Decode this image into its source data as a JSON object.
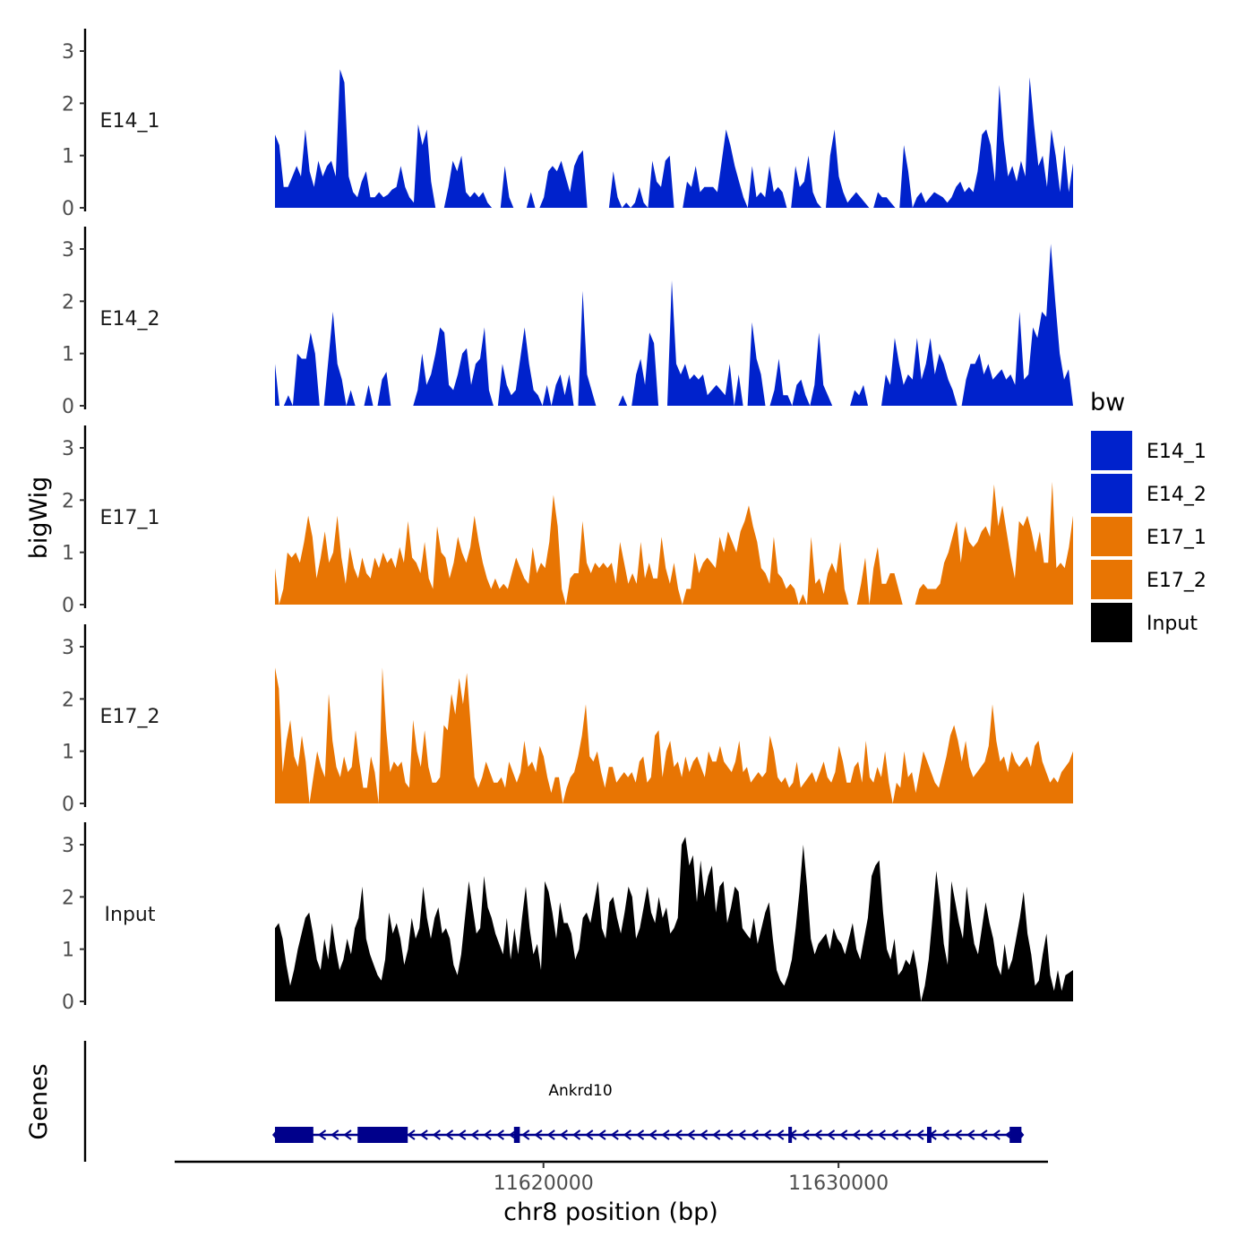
{
  "chart_data": {
    "type": "area",
    "ylabel": "bigWig",
    "xlabel": "chr8 position (bp)",
    "lower_panel_label": "Genes",
    "ylim": [
      0,
      3.3
    ],
    "y_ticks": [
      0,
      1,
      2,
      3
    ],
    "xlim": [
      11607500,
      11637100
    ],
    "x_ticks": [
      11620000,
      11630000
    ],
    "x_tick_labels": [
      "11620000",
      "11630000"
    ],
    "track_x_range": [
      11610900,
      11637950
    ],
    "legend": {
      "title": "bw",
      "entries": [
        {
          "label": "E14_1",
          "color": "#0022CC"
        },
        {
          "label": "E14_2",
          "color": "#0022CC"
        },
        {
          "label": "E17_1",
          "color": "#E87503"
        },
        {
          "label": "E17_2",
          "color": "#E87503"
        },
        {
          "label": "Input",
          "color": "#000000"
        }
      ]
    },
    "series": [
      {
        "name": "E14_1",
        "color": "#0022CC",
        "values": [
          1.4,
          1.2,
          0.4,
          0.4,
          0.6,
          0.8,
          0.6,
          1.5,
          0.7,
          0.4,
          0.9,
          0.6,
          0.8,
          0.9,
          0.6,
          2.65,
          2.4,
          0.6,
          0.3,
          0.2,
          0.5,
          0.7,
          0.2,
          0.2,
          0.3,
          0.2,
          0.25,
          0.35,
          0.4,
          0.8,
          0.4,
          0.2,
          0.1,
          1.6,
          1.2,
          1.5,
          0.5,
          0.0,
          0.0,
          0.0,
          0.4,
          0.9,
          0.7,
          1.0,
          0.3,
          0.2,
          0.3,
          0.2,
          0.3,
          0.1,
          0.0,
          0.0,
          0.0,
          0.8,
          0.2,
          0.0,
          0.0,
          0.0,
          0.0,
          0.3,
          0.0,
          0.0,
          0.2,
          0.7,
          0.8,
          0.7,
          0.9,
          0.6,
          0.3,
          0.8,
          1.0,
          1.1,
          0.0,
          0.0,
          0.0,
          0.0,
          0.0,
          0.0,
          0.7,
          0.2,
          0.0,
          0.1,
          0.0,
          0.1,
          0.4,
          0.1,
          0.0,
          0.9,
          0.5,
          0.4,
          0.9,
          1.0,
          0.0,
          0.0,
          0.0,
          0.5,
          0.4,
          0.8,
          0.3,
          0.4,
          0.4,
          0.4,
          0.3,
          0.9,
          1.5,
          1.2,
          0.8,
          0.5,
          0.2,
          0.0,
          0.8,
          0.2,
          0.3,
          0.2,
          0.8,
          0.3,
          0.4,
          0.3,
          0.0,
          0.0,
          0.8,
          0.4,
          0.5,
          1.0,
          0.3,
          0.1,
          0.0,
          0.0,
          1.0,
          1.5,
          0.6,
          0.3,
          0.1,
          0.2,
          0.3,
          0.2,
          0.1,
          0.0,
          0.0,
          0.3,
          0.2,
          0.2,
          0.1,
          0.0,
          0.0,
          1.2,
          0.7,
          0.0,
          0.2,
          0.3,
          0.1,
          0.2,
          0.3,
          0.25,
          0.2,
          0.1,
          0.2,
          0.4,
          0.5,
          0.3,
          0.4,
          0.3,
          0.7,
          1.4,
          1.5,
          1.2,
          0.5,
          2.35,
          1.3,
          0.6,
          0.8,
          0.5,
          0.9,
          0.6,
          2.5,
          1.6,
          0.8,
          1.0,
          0.4,
          1.5,
          1.0,
          0.3,
          1.2,
          0.3,
          0.85
        ]
      },
      {
        "name": "E14_2",
        "color": "#0022CC",
        "values": [
          0.8,
          0.0,
          0.0,
          0.2,
          0.0,
          1.0,
          0.9,
          0.9,
          1.4,
          1.0,
          0.0,
          0.0,
          0.9,
          1.8,
          0.8,
          0.5,
          0.0,
          0.3,
          0.0,
          0.0,
          0.0,
          0.4,
          0.0,
          0.0,
          0.5,
          0.65,
          0.0,
          0.0,
          0.0,
          0.0,
          0.0,
          0.0,
          0.3,
          1.0,
          0.4,
          0.6,
          1.0,
          1.5,
          1.4,
          0.4,
          0.3,
          0.6,
          1.0,
          1.1,
          0.4,
          0.8,
          0.9,
          1.5,
          0.3,
          0.0,
          0.0,
          0.8,
          0.4,
          0.2,
          0.3,
          0.9,
          1.5,
          0.8,
          0.3,
          0.2,
          0.0,
          0.4,
          0.0,
          0.4,
          0.6,
          0.2,
          0.6,
          0.0,
          0.0,
          2.2,
          0.6,
          0.3,
          0.0,
          0.0,
          0.0,
          0.0,
          0.0,
          0.0,
          0.2,
          0.0,
          0.0,
          0.6,
          0.9,
          0.4,
          1.4,
          1.2,
          0.0,
          0.0,
          0.0,
          2.4,
          0.8,
          0.6,
          0.8,
          0.5,
          0.6,
          0.5,
          0.6,
          0.2,
          0.3,
          0.4,
          0.3,
          0.2,
          0.8,
          0.0,
          0.6,
          0.0,
          0.0,
          1.6,
          0.9,
          0.6,
          0.0,
          0.0,
          0.3,
          0.9,
          0.2,
          0.2,
          0.0,
          0.4,
          0.5,
          0.2,
          0.0,
          0.4,
          1.4,
          0.4,
          0.2,
          0.0,
          0.0,
          0.0,
          0.0,
          0.0,
          0.3,
          0.2,
          0.4,
          0.0,
          0.0,
          0.0,
          0.0,
          0.6,
          0.4,
          1.3,
          0.8,
          0.4,
          0.6,
          0.5,
          1.3,
          0.5,
          0.8,
          1.3,
          0.6,
          1.0,
          0.8,
          0.5,
          0.3,
          0.0,
          0.0,
          0.5,
          0.8,
          0.8,
          1.0,
          0.6,
          0.8,
          0.5,
          0.6,
          0.7,
          0.5,
          0.6,
          0.4,
          1.8,
          0.5,
          0.6,
          1.5,
          1.3,
          1.8,
          1.7,
          3.1,
          2.0,
          1.0,
          0.5,
          0.7,
          0.0
        ]
      },
      {
        "name": "E17_1",
        "color": "#E87503",
        "values": [
          0.7,
          0.0,
          0.3,
          1.0,
          0.9,
          1.0,
          0.8,
          1.2,
          1.7,
          1.3,
          0.5,
          0.9,
          1.4,
          0.8,
          1.0,
          1.7,
          0.9,
          0.4,
          1.1,
          0.7,
          0.5,
          0.9,
          0.6,
          0.5,
          0.9,
          0.7,
          1.0,
          0.8,
          0.9,
          0.7,
          1.1,
          0.8,
          1.6,
          0.9,
          0.8,
          0.6,
          1.2,
          0.5,
          0.3,
          1.5,
          1.0,
          0.9,
          0.5,
          0.8,
          1.3,
          1.0,
          0.8,
          1.1,
          1.7,
          1.2,
          0.8,
          0.5,
          0.3,
          0.5,
          0.3,
          0.4,
          0.3,
          0.6,
          0.9,
          0.7,
          0.5,
          0.4,
          1.1,
          0.6,
          0.8,
          0.7,
          1.2,
          2.1,
          1.5,
          0.3,
          0.0,
          0.5,
          0.6,
          0.6,
          1.6,
          0.8,
          0.6,
          0.8,
          0.7,
          0.8,
          0.7,
          0.8,
          0.4,
          1.2,
          0.8,
          0.4,
          0.6,
          0.4,
          1.2,
          0.5,
          0.8,
          0.5,
          0.5,
          1.3,
          0.7,
          0.4,
          0.8,
          0.3,
          0.0,
          0.3,
          0.3,
          1.0,
          0.6,
          0.8,
          0.9,
          0.8,
          0.7,
          1.3,
          1.0,
          1.4,
          1.2,
          1.0,
          1.4,
          1.6,
          1.9,
          1.5,
          1.2,
          0.7,
          0.6,
          0.4,
          1.3,
          0.6,
          0.5,
          0.3,
          0.4,
          0.3,
          0.0,
          0.2,
          0.0,
          1.3,
          0.4,
          0.5,
          0.2,
          0.6,
          0.8,
          0.6,
          1.2,
          0.3,
          0.0,
          0.0,
          0.0,
          0.4,
          0.9,
          0.0,
          0.7,
          1.1,
          0.4,
          0.4,
          0.6,
          0.6,
          0.3,
          0.0,
          0.0,
          0.0,
          0.0,
          0.3,
          0.4,
          0.3,
          0.3,
          0.3,
          0.4,
          0.8,
          1.0,
          1.3,
          1.6,
          0.8,
          1.5,
          1.2,
          1.1,
          1.2,
          1.4,
          1.5,
          1.3,
          2.3,
          1.5,
          1.9,
          1.4,
          0.9,
          0.5,
          1.6,
          1.5,
          1.7,
          1.4,
          1.0,
          1.4,
          0.8,
          0.8,
          2.35,
          0.7,
          0.8,
          0.7,
          1.1,
          1.7
        ]
      },
      {
        "name": "E17_2",
        "color": "#E87503",
        "values": [
          2.6,
          2.2,
          0.6,
          1.2,
          1.6,
          0.9,
          0.7,
          1.3,
          0.8,
          0.0,
          0.5,
          1.0,
          0.7,
          0.5,
          2.1,
          1.2,
          0.7,
          0.5,
          0.9,
          0.6,
          0.7,
          1.4,
          0.8,
          0.3,
          0.3,
          0.9,
          0.6,
          0.0,
          2.6,
          1.4,
          0.6,
          0.8,
          0.7,
          0.8,
          0.4,
          0.3,
          1.6,
          1.0,
          0.7,
          1.4,
          0.7,
          0.4,
          0.4,
          0.5,
          1.5,
          1.4,
          2.1,
          1.7,
          2.4,
          1.9,
          2.5,
          1.5,
          0.5,
          0.3,
          0.5,
          0.8,
          0.6,
          0.4,
          0.4,
          0.5,
          0.3,
          0.8,
          0.6,
          0.4,
          0.6,
          1.2,
          0.7,
          0.8,
          0.6,
          1.1,
          0.9,
          0.5,
          0.2,
          0.5,
          0.5,
          0.0,
          0.3,
          0.5,
          0.6,
          0.9,
          1.3,
          1.9,
          0.9,
          0.8,
          1.0,
          0.6,
          0.3,
          0.7,
          0.7,
          0.4,
          0.5,
          0.6,
          0.5,
          0.6,
          0.4,
          0.8,
          0.9,
          0.4,
          0.5,
          1.3,
          1.4,
          0.5,
          1.0,
          1.2,
          0.7,
          0.8,
          0.5,
          0.9,
          0.6,
          0.8,
          0.9,
          0.7,
          0.5,
          1.0,
          0.8,
          0.8,
          1.1,
          0.8,
          0.7,
          0.6,
          0.8,
          1.2,
          0.6,
          0.7,
          0.4,
          0.5,
          0.6,
          0.5,
          0.6,
          1.3,
          1.0,
          0.5,
          0.4,
          0.5,
          0.3,
          0.4,
          0.8,
          0.3,
          0.4,
          0.5,
          0.6,
          0.4,
          0.6,
          0.8,
          0.5,
          0.4,
          0.6,
          1.1,
          0.8,
          0.4,
          0.4,
          0.7,
          0.8,
          0.4,
          1.2,
          0.5,
          0.4,
          0.7,
          0.5,
          1.0,
          0.4,
          0.0,
          0.4,
          0.3,
          1.0,
          0.5,
          0.6,
          0.2,
          0.6,
          1.0,
          0.8,
          0.6,
          0.4,
          0.3,
          0.6,
          0.9,
          1.3,
          1.5,
          1.2,
          0.8,
          1.2,
          0.7,
          0.5,
          0.6,
          0.7,
          0.8,
          1.1,
          1.9,
          1.2,
          0.8,
          0.9,
          0.6,
          1.0,
          0.8,
          0.7,
          0.8,
          0.9,
          0.7,
          1.1,
          1.2,
          0.8,
          0.6,
          0.4,
          0.5,
          0.4,
          0.6,
          0.7,
          0.8,
          1.0
        ]
      },
      {
        "name": "Input",
        "color": "#000000",
        "values": [
          1.4,
          1.5,
          1.2,
          0.7,
          0.3,
          0.6,
          1.0,
          1.3,
          1.6,
          1.7,
          1.3,
          0.8,
          0.6,
          1.2,
          0.8,
          1.5,
          1.0,
          0.6,
          0.8,
          1.2,
          0.9,
          1.4,
          1.6,
          2.2,
          1.2,
          0.9,
          0.7,
          0.5,
          0.4,
          0.8,
          1.7,
          1.3,
          1.5,
          1.2,
          0.7,
          1.0,
          1.6,
          1.2,
          1.4,
          2.2,
          1.6,
          1.2,
          1.6,
          1.8,
          1.3,
          1.4,
          1.2,
          0.7,
          0.5,
          0.9,
          1.6,
          2.3,
          1.8,
          1.3,
          1.4,
          2.4,
          1.8,
          1.6,
          1.3,
          1.1,
          0.9,
          1.6,
          0.8,
          1.4,
          0.9,
          1.6,
          2.2,
          1.4,
          0.9,
          1.1,
          0.6,
          2.3,
          2.1,
          1.7,
          1.2,
          1.9,
          1.5,
          1.5,
          1.3,
          0.8,
          1.0,
          1.6,
          1.7,
          1.5,
          1.9,
          2.3,
          1.4,
          1.2,
          1.9,
          2.0,
          1.6,
          1.3,
          1.7,
          2.2,
          2.0,
          1.2,
          1.4,
          1.8,
          2.2,
          1.7,
          1.5,
          2.0,
          1.6,
          1.8,
          1.3,
          1.4,
          1.6,
          3.0,
          3.15,
          2.6,
          2.8,
          1.9,
          2.7,
          2.0,
          2.4,
          2.6,
          1.7,
          2.2,
          2.3,
          1.5,
          1.8,
          2.2,
          2.1,
          1.4,
          1.3,
          1.2,
          1.6,
          1.1,
          1.4,
          1.7,
          1.9,
          1.2,
          0.6,
          0.4,
          0.3,
          0.5,
          0.8,
          1.4,
          2.1,
          3.0,
          2.2,
          1.2,
          0.9,
          1.1,
          1.2,
          1.3,
          1.0,
          1.4,
          1.2,
          1.1,
          0.9,
          1.2,
          1.5,
          1.0,
          0.8,
          1.2,
          1.6,
          2.4,
          2.6,
          2.7,
          1.7,
          1.0,
          0.8,
          1.2,
          0.5,
          0.6,
          0.8,
          0.7,
          1.0,
          0.6,
          0.0,
          0.3,
          0.8,
          1.6,
          2.5,
          1.9,
          1.1,
          0.7,
          2.3,
          1.9,
          1.5,
          1.2,
          2.2,
          1.6,
          1.1,
          0.9,
          1.4,
          1.9,
          1.5,
          1.2,
          0.7,
          0.5,
          1.1,
          0.6,
          0.8,
          1.2,
          1.6,
          2.1,
          1.3,
          0.9,
          0.3,
          0.4,
          0.9,
          1.3,
          0.5,
          0.2,
          0.6,
          0.2,
          0.5,
          0.55,
          0.6
        ]
      }
    ],
    "genes": [
      {
        "name": "Ankrd10",
        "start": 11610900,
        "end": 11636200,
        "strand": "-",
        "exons": [
          {
            "start": 11610900,
            "end": 11612200
          },
          {
            "start": 11613700,
            "end": 11615400
          },
          {
            "start": 11619000,
            "end": 11619200
          },
          {
            "start": 11628300,
            "end": 11628400
          },
          {
            "start": 11633000,
            "end": 11633150
          },
          {
            "start": 11635800,
            "end": 11636200
          }
        ]
      }
    ]
  }
}
